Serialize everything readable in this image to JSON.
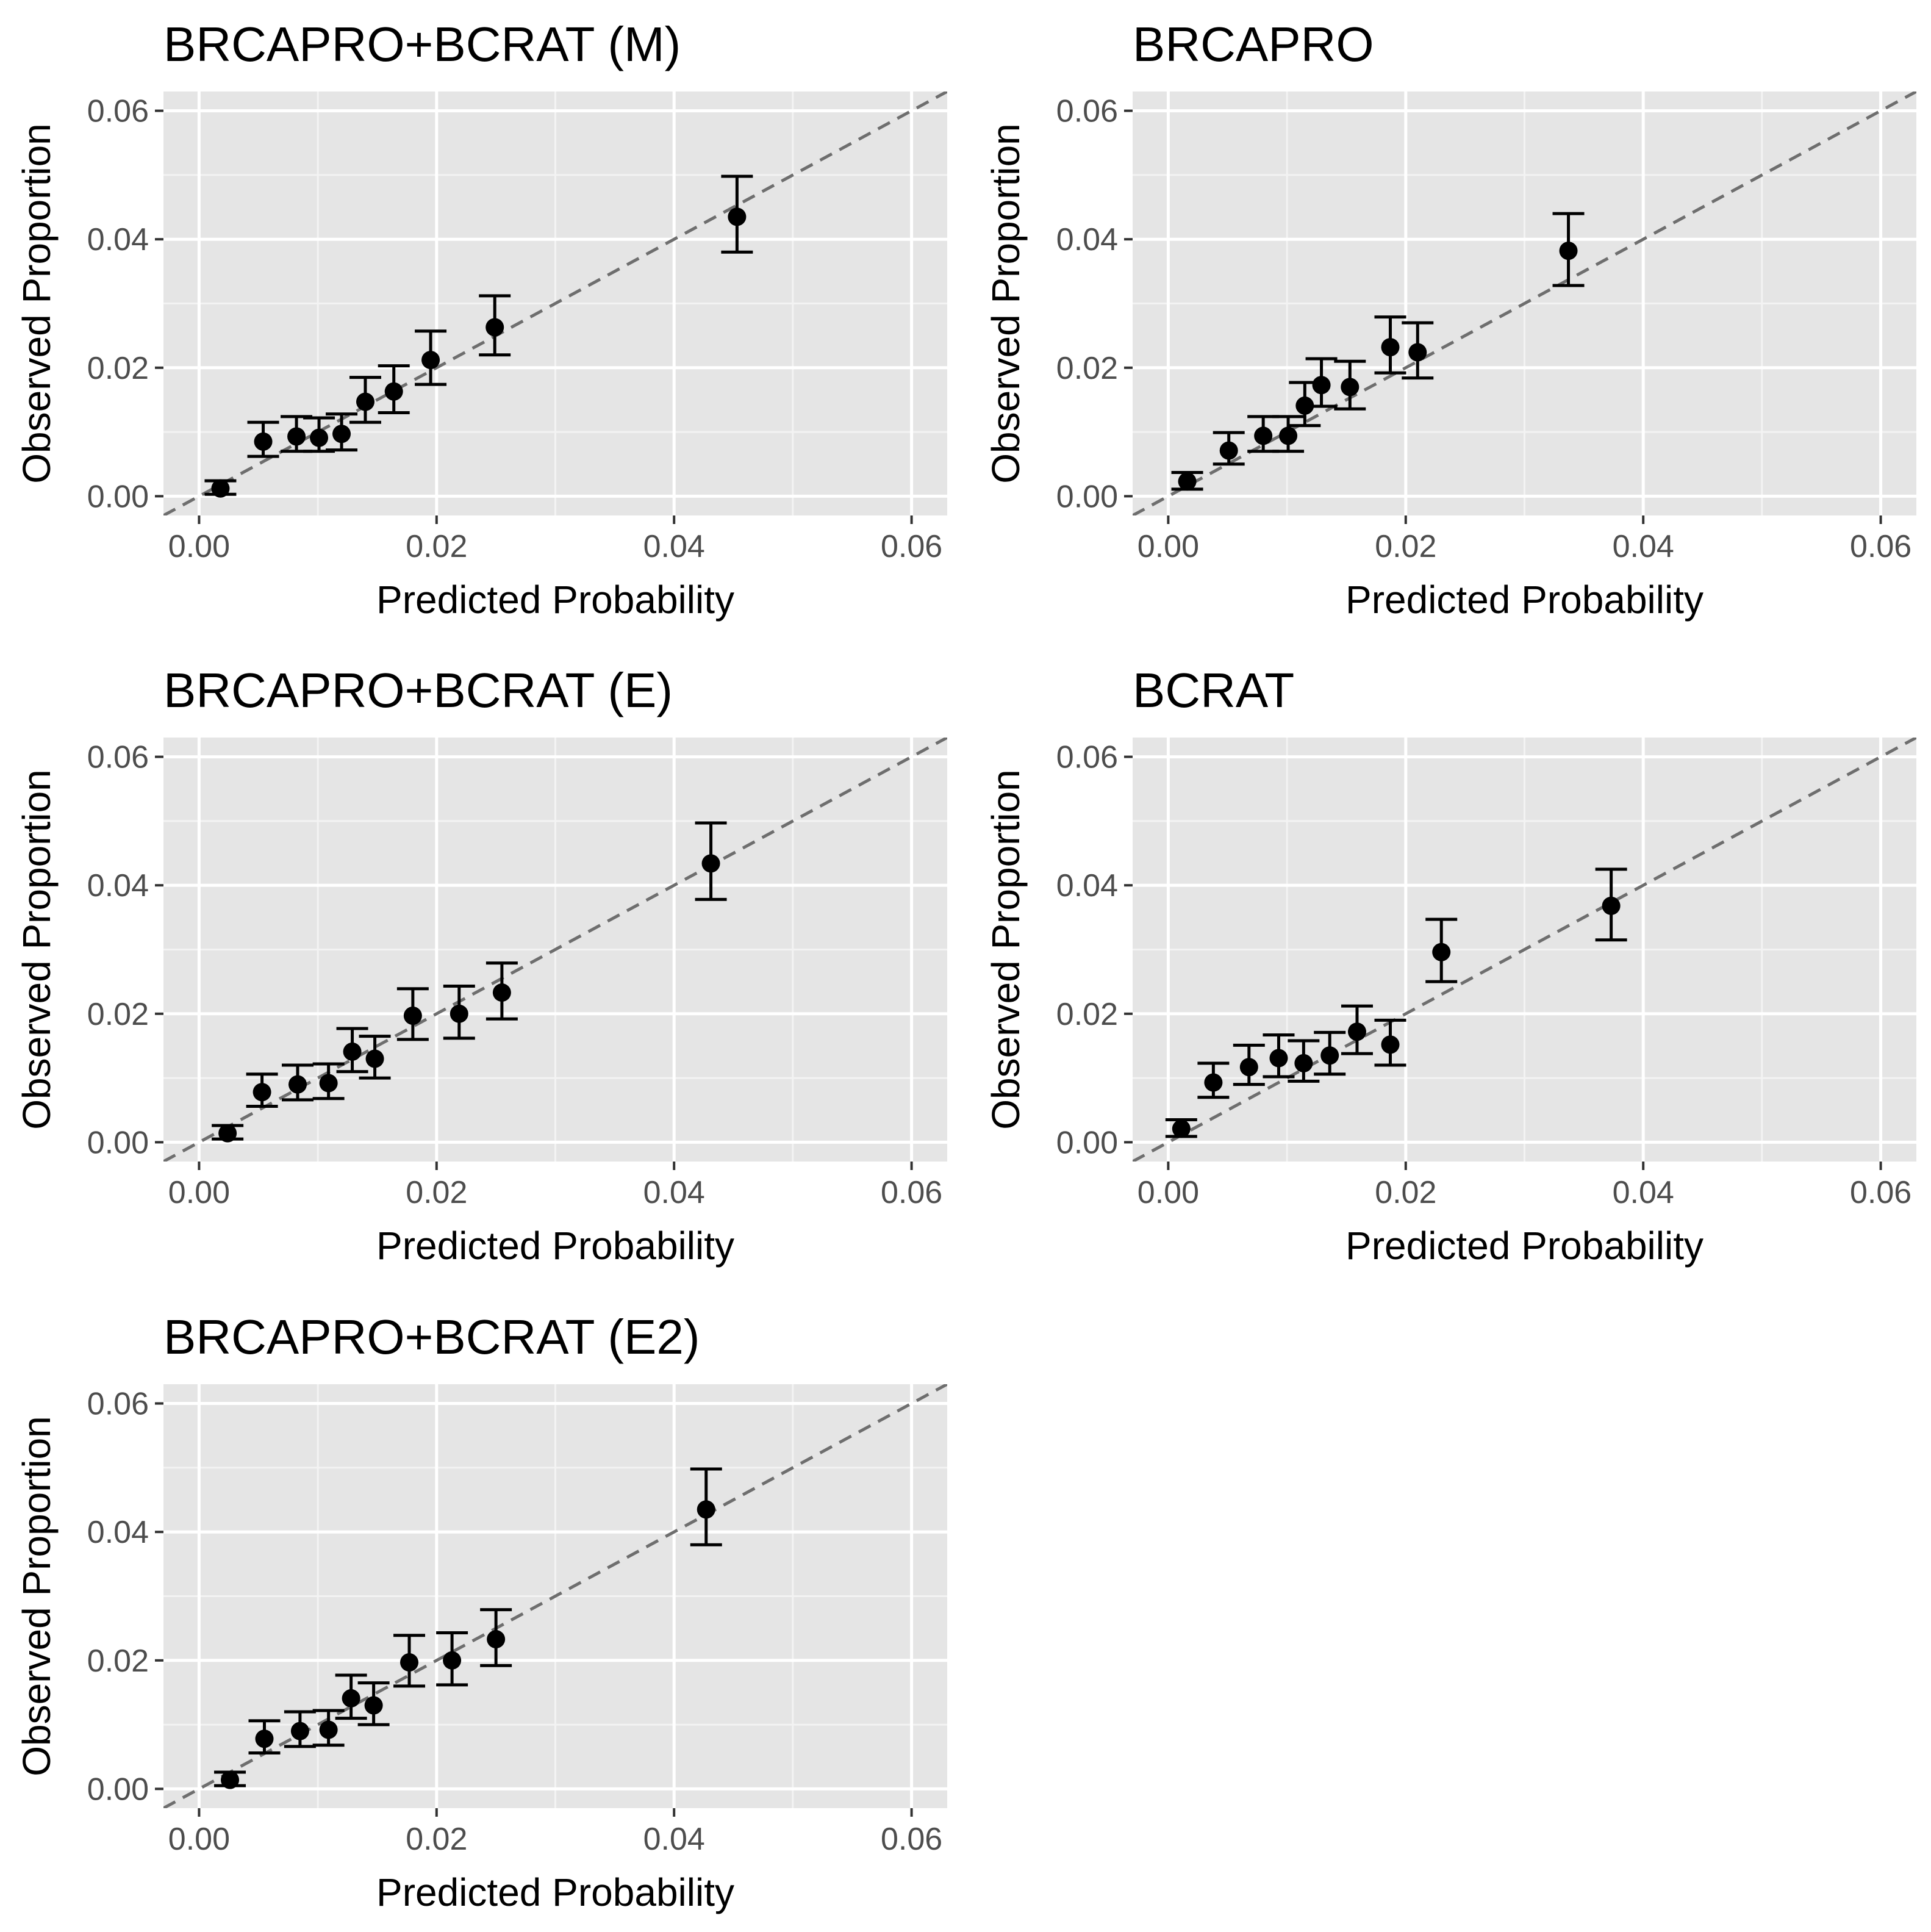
{
  "chart_data": [
    {
      "type": "scatter",
      "title": "BRCAPRO+BCRAT (M)",
      "xlabel": "Predicted Probability",
      "ylabel": "Observed Proportion",
      "xlim": [
        -0.003,
        0.063
      ],
      "ylim": [
        -0.003,
        0.063
      ],
      "xticks": [
        "0.00",
        "0.02",
        "0.04",
        "0.06"
      ],
      "yticks": [
        "0.00",
        "0.02",
        "0.04",
        "0.06"
      ],
      "reference_line": "y = x (dashed)",
      "points": [
        {
          "x": 0.0018,
          "y": 0.0012,
          "lo": 0.0003,
          "hi": 0.0024
        },
        {
          "x": 0.0054,
          "y": 0.0085,
          "lo": 0.0062,
          "hi": 0.0115
        },
        {
          "x": 0.0082,
          "y": 0.0093,
          "lo": 0.007,
          "hi": 0.0124
        },
        {
          "x": 0.0101,
          "y": 0.0091,
          "lo": 0.007,
          "hi": 0.0122
        },
        {
          "x": 0.012,
          "y": 0.0097,
          "lo": 0.0072,
          "hi": 0.0128
        },
        {
          "x": 0.014,
          "y": 0.0147,
          "lo": 0.0115,
          "hi": 0.0185
        },
        {
          "x": 0.0164,
          "y": 0.0163,
          "lo": 0.013,
          "hi": 0.0203
        },
        {
          "x": 0.0195,
          "y": 0.0212,
          "lo": 0.0174,
          "hi": 0.0257
        },
        {
          "x": 0.0249,
          "y": 0.0263,
          "lo": 0.022,
          "hi": 0.0312
        },
        {
          "x": 0.0453,
          "y": 0.0435,
          "lo": 0.038,
          "hi": 0.0498
        }
      ]
    },
    {
      "type": "scatter",
      "title": "BRCAPRO",
      "xlabel": "Predicted Probability",
      "ylabel": "Observed Proportion",
      "xlim": [
        -0.003,
        0.063
      ],
      "ylim": [
        -0.003,
        0.063
      ],
      "xticks": [
        "0.00",
        "0.02",
        "0.04",
        "0.06"
      ],
      "yticks": [
        "0.00",
        "0.02",
        "0.04",
        "0.06"
      ],
      "reference_line": "y = x (dashed)",
      "points": [
        {
          "x": 0.0016,
          "y": 0.0023,
          "lo": 0.0011,
          "hi": 0.0037
        },
        {
          "x": 0.0051,
          "y": 0.0071,
          "lo": 0.005,
          "hi": 0.0099
        },
        {
          "x": 0.008,
          "y": 0.0094,
          "lo": 0.007,
          "hi": 0.0124
        },
        {
          "x": 0.0101,
          "y": 0.0094,
          "lo": 0.007,
          "hi": 0.0124
        },
        {
          "x": 0.0115,
          "y": 0.0141,
          "lo": 0.011,
          "hi": 0.0177
        },
        {
          "x": 0.0129,
          "y": 0.0173,
          "lo": 0.014,
          "hi": 0.0214
        },
        {
          "x": 0.0153,
          "y": 0.017,
          "lo": 0.0136,
          "hi": 0.021
        },
        {
          "x": 0.0187,
          "y": 0.0232,
          "lo": 0.0192,
          "hi": 0.0279
        },
        {
          "x": 0.021,
          "y": 0.0224,
          "lo": 0.0184,
          "hi": 0.027
        },
        {
          "x": 0.0337,
          "y": 0.0382,
          "lo": 0.0328,
          "hi": 0.044
        }
      ]
    },
    {
      "type": "scatter",
      "title": "BRCAPRO+BCRAT (E)",
      "xlabel": "Predicted Probability",
      "ylabel": "Observed Proportion",
      "xlim": [
        -0.003,
        0.063
      ],
      "ylim": [
        -0.003,
        0.063
      ],
      "xticks": [
        "0.00",
        "0.02",
        "0.04",
        "0.06"
      ],
      "yticks": [
        "0.00",
        "0.02",
        "0.04",
        "0.06"
      ],
      "reference_line": "y = x (dashed)",
      "points": [
        {
          "x": 0.0024,
          "y": 0.0014,
          "lo": 0.0005,
          "hi": 0.0026
        },
        {
          "x": 0.0053,
          "y": 0.0078,
          "lo": 0.0056,
          "hi": 0.0106
        },
        {
          "x": 0.0083,
          "y": 0.009,
          "lo": 0.0066,
          "hi": 0.012
        },
        {
          "x": 0.0109,
          "y": 0.0092,
          "lo": 0.0068,
          "hi": 0.0122
        },
        {
          "x": 0.0129,
          "y": 0.0141,
          "lo": 0.011,
          "hi": 0.0177
        },
        {
          "x": 0.0148,
          "y": 0.013,
          "lo": 0.01,
          "hi": 0.0165
        },
        {
          "x": 0.018,
          "y": 0.0197,
          "lo": 0.016,
          "hi": 0.0239
        },
        {
          "x": 0.0219,
          "y": 0.02,
          "lo": 0.0162,
          "hi": 0.0243
        },
        {
          "x": 0.0255,
          "y": 0.0233,
          "lo": 0.0192,
          "hi": 0.0279
        },
        {
          "x": 0.0431,
          "y": 0.0434,
          "lo": 0.0378,
          "hi": 0.0497
        }
      ]
    },
    {
      "type": "scatter",
      "title": "BCRAT",
      "xlabel": "Predicted Probability",
      "ylabel": "Observed Proportion",
      "xlim": [
        -0.003,
        0.063
      ],
      "ylim": [
        -0.003,
        0.063
      ],
      "xticks": [
        "0.00",
        "0.02",
        "0.04",
        "0.06"
      ],
      "yticks": [
        "0.00",
        "0.02",
        "0.04",
        "0.06"
      ],
      "reference_line": "y = x (dashed)",
      "points": [
        {
          "x": 0.0011,
          "y": 0.0021,
          "lo": 0.0009,
          "hi": 0.0035
        },
        {
          "x": 0.0038,
          "y": 0.0093,
          "lo": 0.007,
          "hi": 0.0123
        },
        {
          "x": 0.0068,
          "y": 0.0117,
          "lo": 0.009,
          "hi": 0.0151
        },
        {
          "x": 0.0093,
          "y": 0.0131,
          "lo": 0.0102,
          "hi": 0.0167
        },
        {
          "x": 0.0114,
          "y": 0.0123,
          "lo": 0.0095,
          "hi": 0.0158
        },
        {
          "x": 0.0136,
          "y": 0.0135,
          "lo": 0.0106,
          "hi": 0.0171
        },
        {
          "x": 0.0159,
          "y": 0.0172,
          "lo": 0.0138,
          "hi": 0.0212
        },
        {
          "x": 0.0187,
          "y": 0.0152,
          "lo": 0.012,
          "hi": 0.019
        },
        {
          "x": 0.023,
          "y": 0.0296,
          "lo": 0.025,
          "hi": 0.0347
        },
        {
          "x": 0.0373,
          "y": 0.0368,
          "lo": 0.0315,
          "hi": 0.0425
        }
      ]
    },
    {
      "type": "scatter",
      "title": "BRCAPRO+BCRAT (E2)",
      "xlabel": "Predicted Probability",
      "ylabel": "Observed Proportion",
      "xlim": [
        -0.003,
        0.063
      ],
      "ylim": [
        -0.003,
        0.063
      ],
      "xticks": [
        "0.00",
        "0.02",
        "0.04",
        "0.06"
      ],
      "yticks": [
        "0.00",
        "0.02",
        "0.04",
        "0.06"
      ],
      "reference_line": "y = x (dashed)",
      "points": [
        {
          "x": 0.0026,
          "y": 0.0014,
          "lo": 0.0005,
          "hi": 0.0026
        },
        {
          "x": 0.0055,
          "y": 0.0078,
          "lo": 0.0056,
          "hi": 0.0106
        },
        {
          "x": 0.0085,
          "y": 0.009,
          "lo": 0.0066,
          "hi": 0.012
        },
        {
          "x": 0.0109,
          "y": 0.0092,
          "lo": 0.0068,
          "hi": 0.0122
        },
        {
          "x": 0.0128,
          "y": 0.0141,
          "lo": 0.011,
          "hi": 0.0177
        },
        {
          "x": 0.0147,
          "y": 0.013,
          "lo": 0.01,
          "hi": 0.0165
        },
        {
          "x": 0.0177,
          "y": 0.0197,
          "lo": 0.016,
          "hi": 0.0239
        },
        {
          "x": 0.0213,
          "y": 0.02,
          "lo": 0.0162,
          "hi": 0.0243
        },
        {
          "x": 0.025,
          "y": 0.0233,
          "lo": 0.0192,
          "hi": 0.0279
        },
        {
          "x": 0.0427,
          "y": 0.0435,
          "lo": 0.038,
          "hi": 0.0498
        }
      ]
    }
  ],
  "colors": {
    "panel_background": "#e5e5e5",
    "grid_major": "#ffffff",
    "grid_minor": "#f3f3f3",
    "point": "#000000",
    "reference_line": "#6e6e6e",
    "tick_label": "#4d4d4d"
  }
}
